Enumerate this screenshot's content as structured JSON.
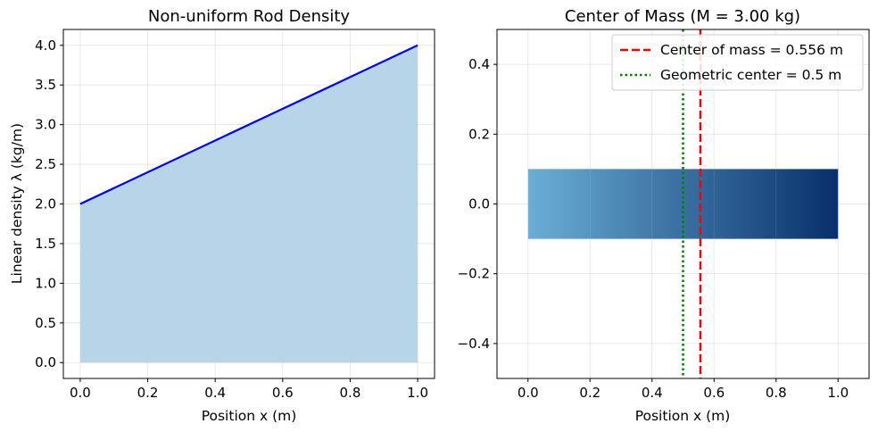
{
  "chart_data": [
    {
      "type": "area",
      "title": "Non-uniform Rod Density",
      "xlabel": "Position x (m)",
      "ylabel": "Linear density λ (kg/m)",
      "xlim": [
        -0.05,
        1.05
      ],
      "ylim": [
        -0.2,
        4.2
      ],
      "xticks": [
        0.0,
        0.2,
        0.4,
        0.6,
        0.8,
        1.0
      ],
      "xtick_labels": [
        "0.0",
        "0.2",
        "0.4",
        "0.6",
        "0.8",
        "1.0"
      ],
      "yticks": [
        0.0,
        0.5,
        1.0,
        1.5,
        2.0,
        2.5,
        3.0,
        3.5,
        4.0
      ],
      "ytick_labels": [
        "0.0",
        "0.5",
        "1.0",
        "1.5",
        "2.0",
        "2.5",
        "3.0",
        "3.5",
        "4.0"
      ],
      "grid": true,
      "series": [
        {
          "x": [
            0.0,
            1.0
          ],
          "y": [
            2.0,
            4.0
          ],
          "color": "#0000ff",
          "fill_color": "#b8d4e8"
        }
      ]
    },
    {
      "type": "line",
      "title": "Center of Mass (M = 3.00 kg)",
      "xlabel": "Position x (m)",
      "ylabel": "",
      "xlim": [
        -0.1,
        1.1
      ],
      "ylim": [
        -0.5,
        0.5
      ],
      "xticks": [
        0.0,
        0.2,
        0.4,
        0.6,
        0.8,
        1.0
      ],
      "xtick_labels": [
        "0.0",
        "0.2",
        "0.4",
        "0.6",
        "0.8",
        "1.0"
      ],
      "yticks": [
        -0.4,
        -0.2,
        0.0,
        0.2,
        0.4
      ],
      "ytick_labels": [
        "−0.4",
        "−0.2",
        "0.0",
        "0.2",
        "0.4"
      ],
      "grid": true,
      "rod": {
        "x": [
          0.0,
          1.0
        ],
        "y": [
          -0.1,
          0.1
        ],
        "colormap": "Blues",
        "color_start": "#6aaed6",
        "color_end": "#08306b"
      },
      "series": [
        {
          "name": "Center of mass = 0.556 m",
          "x": 0.556,
          "color": "#ff0000",
          "style": "dashed"
        },
        {
          "name": "Geometric center = 0.5 m",
          "x": 0.5,
          "color": "#008000",
          "style": "dotted"
        }
      ],
      "legend_position": "top-right"
    }
  ]
}
